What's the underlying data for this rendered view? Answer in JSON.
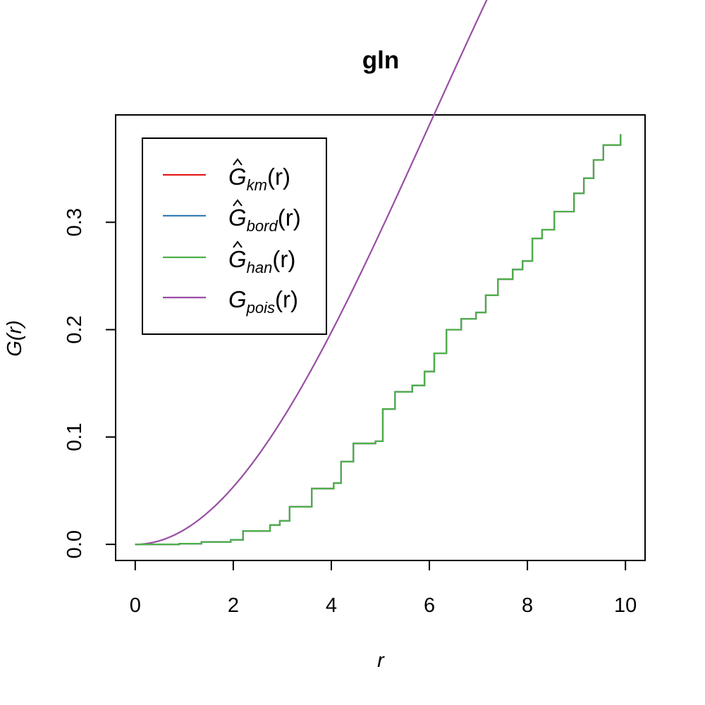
{
  "chart_data": {
    "type": "line",
    "title": "gln",
    "xlabel": "r",
    "ylabel": "G(r)",
    "xlim": [
      -0.4,
      10.4
    ],
    "ylim": [
      -0.015,
      0.4
    ],
    "x_ticks": [
      "0",
      "2",
      "4",
      "6",
      "8",
      "10"
    ],
    "x_tick_values": [
      0,
      2,
      4,
      6,
      8,
      10
    ],
    "y_ticks": [
      "0.0",
      "0.1",
      "0.2",
      "0.3"
    ],
    "y_tick_values": [
      0,
      0.1,
      0.2,
      0.3
    ],
    "grid": false,
    "legend_position": "top-left",
    "legend": [
      {
        "key": "km",
        "base": "G",
        "hat": true,
        "sub": "km",
        "arg": "(r)",
        "color": "#E41A1C"
      },
      {
        "key": "bord",
        "base": "G",
        "hat": true,
        "sub": "bord",
        "arg": "(r)",
        "color": "#377EB8"
      },
      {
        "key": "han",
        "base": "G",
        "hat": true,
        "sub": "han",
        "arg": "(r)",
        "color": "#4DAF4A"
      },
      {
        "key": "pois",
        "base": "G",
        "hat": false,
        "sub": "pois",
        "arg": "(r)",
        "color": "#984EA3"
      }
    ],
    "empirical_steps": {
      "x": [
        0,
        0.9,
        1.35,
        1.95,
        2.2,
        2.75,
        2.95,
        3.15,
        3.6,
        4.05,
        4.2,
        4.45,
        4.9,
        5.05,
        5.3,
        5.65,
        5.9,
        6.1,
        6.35,
        6.65,
        6.95,
        7.15,
        7.4,
        7.7,
        7.9,
        8.1,
        8.3,
        8.55,
        8.95,
        9.15,
        9.35,
        9.55,
        9.9
      ],
      "y": [
        0,
        0.0007,
        0.0022,
        0.0042,
        0.0125,
        0.018,
        0.022,
        0.035,
        0.052,
        0.057,
        0.077,
        0.094,
        0.096,
        0.126,
        0.142,
        0.148,
        0.161,
        0.178,
        0.2,
        0.21,
        0.216,
        0.232,
        0.247,
        0.256,
        0.264,
        0.285,
        0.293,
        0.31,
        0.327,
        0.341,
        0.358,
        0.372,
        0.382
      ]
    },
    "theoretical": {
      "type": "poisson",
      "lambda": 0.00438,
      "x_max": 9.9
    },
    "series": [
      {
        "name": "km",
        "color": "#E41A1C"
      },
      {
        "name": "bord",
        "color": "#377EB8"
      },
      {
        "name": "han",
        "color": "#4DAF4A"
      },
      {
        "name": "pois",
        "color": "#984EA3"
      }
    ]
  }
}
